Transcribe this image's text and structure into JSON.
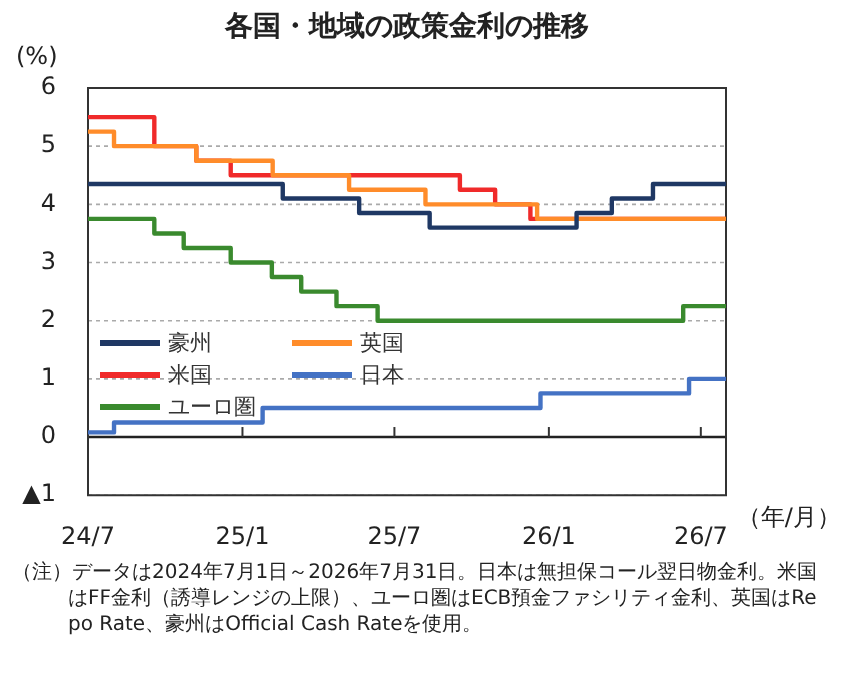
{
  "chart_data": {
    "type": "step",
    "title": "各国・地域の政策金利の推移",
    "ylabel": "(%)",
    "xlabel": "（年/月）",
    "xlim": [
      "2024-07-01",
      "2026-07-31"
    ],
    "xticks": [
      {
        "value": "2024-07-01",
        "label": "24/7"
      },
      {
        "value": "2025-01-01",
        "label": "25/1"
      },
      {
        "value": "2025-07-01",
        "label": "25/7"
      },
      {
        "value": "2026-01-01",
        "label": "26/1"
      },
      {
        "value": "2026-07-01",
        "label": "26/7"
      }
    ],
    "ylim": [
      -1,
      6
    ],
    "yticks": [
      {
        "value": -1,
        "label": "▲1"
      },
      0,
      1,
      2,
      3,
      4,
      5,
      6
    ],
    "grid": "y",
    "legend": "bottom left",
    "marker": "none",
    "line_style": "solid",
    "series": [
      {
        "name": "豪州",
        "color": "#1f3864",
        "x": [
          "2024-07-01",
          "2025-02-18",
          "2025-05-20",
          "2025-08-12",
          "2026-02-03",
          "2026-03-17",
          "2026-05-05",
          "2026-07-31"
        ],
        "values": [
          4.35,
          4.1,
          3.85,
          3.6,
          3.85,
          4.1,
          4.35,
          4.35
        ]
      },
      {
        "name": "英国",
        "color": "#ff8c2a",
        "x": [
          "2024-07-01",
          "2024-08-01",
          "2024-11-07",
          "2025-02-06",
          "2025-05-08",
          "2025-08-07",
          "2025-12-18",
          "2026-07-31"
        ],
        "values": [
          5.25,
          5.0,
          4.75,
          4.5,
          4.25,
          4.0,
          3.75,
          3.75
        ]
      },
      {
        "name": "米国",
        "color": "#f02a2a",
        "x": [
          "2024-07-01",
          "2024-09-18",
          "2024-11-07",
          "2024-12-18",
          "2025-09-17",
          "2025-10-29",
          "2025-12-10",
          "2026-07-31"
        ],
        "values": [
          5.5,
          5.0,
          4.75,
          4.5,
          4.25,
          4.0,
          3.75,
          3.75
        ]
      },
      {
        "name": "日本",
        "color": "#4472c4",
        "x": [
          "2024-07-01",
          "2024-08-01",
          "2025-01-25",
          "2025-12-22",
          "2026-06-17",
          "2026-07-31"
        ],
        "values": [
          0.08,
          0.25,
          0.5,
          0.75,
          1.0,
          1.0
        ]
      },
      {
        "name": "ユーロ圏",
        "color": "#3a8a2e",
        "x": [
          "2024-07-01",
          "2024-09-18",
          "2024-10-23",
          "2024-12-18",
          "2025-02-05",
          "2025-03-12",
          "2025-04-23",
          "2025-06-11",
          "2026-06-10",
          "2026-07-31"
        ],
        "values": [
          3.75,
          3.5,
          3.25,
          3.0,
          2.75,
          2.5,
          2.25,
          2.0,
          2.25,
          2.25
        ]
      }
    ],
    "annotations": [
      "（注）データは2024年7月1日～2026年7月31日。日本は無担保コール翌日物金利。米国はFF金利（誘導レンジの上限）、ユーロ圏はECB預金ファシリティ金利、英国はRepo Rate、豪州はOfficial Cash Rateを使用。"
    ]
  }
}
